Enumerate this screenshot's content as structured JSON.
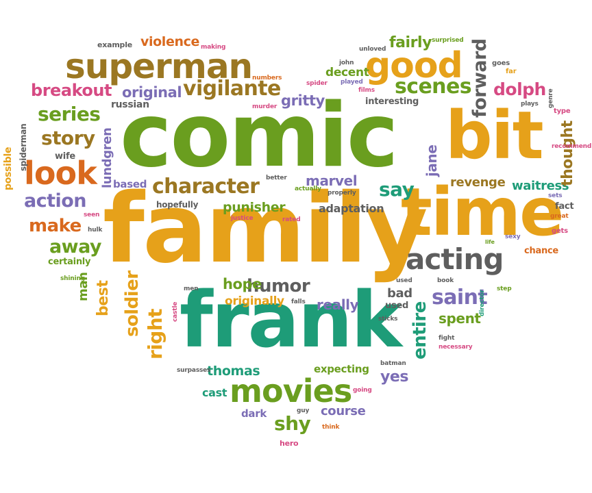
{
  "palette": {
    "green": "#6a9e1f",
    "gold": "#e6a11a",
    "teal": "#1e9c78",
    "gray": "#5e5e5e",
    "purple": "#7b6db5",
    "orange": "#d9691e",
    "brown": "#9b7722",
    "pink": "#d64a83",
    "olive": "#8a9a2a"
  },
  "words": [
    {
      "text": "comic",
      "color": "#6a9e1f"
    },
    {
      "text": "family",
      "color": "#e6a11a"
    },
    {
      "text": "frank",
      "color": "#1e9c78"
    },
    {
      "text": "time",
      "color": "#e6a11a"
    },
    {
      "text": "bit",
      "color": "#e6a11a"
    },
    {
      "text": "superman",
      "color": "#9b7722"
    },
    {
      "text": "good",
      "color": "#e6a11a"
    },
    {
      "text": "look",
      "color": "#d9691e"
    },
    {
      "text": "movies",
      "color": "#6a9e1f"
    },
    {
      "text": "acting",
      "color": "#5e5e5e"
    },
    {
      "text": "character",
      "color": "#9b7722"
    },
    {
      "text": "vigilante",
      "color": "#9b7722"
    },
    {
      "text": "scenes",
      "color": "#6a9e1f"
    },
    {
      "text": "breakout",
      "color": "#d64a83"
    },
    {
      "text": "story",
      "color": "#9b7722"
    },
    {
      "text": "series",
      "color": "#6a9e1f"
    },
    {
      "text": "action",
      "color": "#7b6db5"
    },
    {
      "text": "make",
      "color": "#d9691e"
    },
    {
      "text": "away",
      "color": "#6a9e1f"
    },
    {
      "text": "humor",
      "color": "#5e5e5e"
    },
    {
      "text": "saint",
      "color": "#7b6db5"
    },
    {
      "text": "original",
      "color": "#7b6db5"
    },
    {
      "text": "right",
      "color": "#e6a11a"
    },
    {
      "text": "soldier",
      "color": "#e6a11a"
    },
    {
      "text": "entire",
      "color": "#1e9c78"
    },
    {
      "text": "dolph",
      "color": "#d64a83"
    },
    {
      "text": "forward",
      "color": "#5e5e5e"
    },
    {
      "text": "jane",
      "color": "#7b6db5"
    },
    {
      "text": "say",
      "color": "#1e9c78"
    },
    {
      "text": "revenge",
      "color": "#9b7722"
    },
    {
      "text": "thought",
      "color": "#9b7722"
    },
    {
      "text": "violence",
      "color": "#d9691e"
    },
    {
      "text": "fairly",
      "color": "#6a9e1f"
    },
    {
      "text": "punisher",
      "color": "#6a9e1f"
    },
    {
      "text": "marvel",
      "color": "#7b6db5"
    },
    {
      "text": "gritty",
      "color": "#7b6db5"
    },
    {
      "text": "hope",
      "color": "#6a9e1f"
    },
    {
      "text": "really",
      "color": "#7b6db5"
    },
    {
      "text": "spent",
      "color": "#6a9e1f"
    },
    {
      "text": "yes",
      "color": "#7b6db5"
    },
    {
      "text": "shy",
      "color": "#6a9e1f"
    },
    {
      "text": "thomas",
      "color": "#1e9c78"
    },
    {
      "text": "best",
      "color": "#e6a11a"
    },
    {
      "text": "man",
      "color": "#6a9e1f"
    },
    {
      "text": "lundgren",
      "color": "#7b6db5"
    },
    {
      "text": "decent",
      "color": "#6a9e1f"
    },
    {
      "text": "waitress",
      "color": "#1e9c78"
    },
    {
      "text": "originally",
      "color": "#e6a11a"
    },
    {
      "text": "course",
      "color": "#7b6db5"
    },
    {
      "text": "expecting",
      "color": "#6a9e1f"
    },
    {
      "text": "adaptation",
      "color": "#5e5e5e"
    },
    {
      "text": "bad",
      "color": "#5e5e5e"
    },
    {
      "text": "possible",
      "color": "#e6a11a"
    },
    {
      "text": "spiderman",
      "color": "#5e5e5e"
    },
    {
      "text": "wife",
      "color": "#5e5e5e"
    },
    {
      "text": "based",
      "color": "#7b6db5"
    },
    {
      "text": "hopefully",
      "color": "#5e5e5e"
    },
    {
      "text": "russian",
      "color": "#5e5e5e"
    },
    {
      "text": "cast",
      "color": "#1e9c78"
    },
    {
      "text": "dark",
      "color": "#7b6db5"
    },
    {
      "text": "certainly",
      "color": "#6a9e1f"
    },
    {
      "text": "interesting",
      "color": "#5e5e5e"
    },
    {
      "text": "example",
      "color": "#5e5e5e"
    },
    {
      "text": "making",
      "color": "#d64a83"
    },
    {
      "text": "unloved",
      "color": "#5e5e5e"
    },
    {
      "text": "surprised",
      "color": "#6a9e1f"
    },
    {
      "text": "goes",
      "color": "#5e5e5e"
    },
    {
      "text": "far",
      "color": "#e6a11a"
    },
    {
      "text": "john",
      "color": "#5e5e5e"
    },
    {
      "text": "numbers",
      "color": "#d9691e"
    },
    {
      "text": "spider",
      "color": "#d64a83"
    },
    {
      "text": "played",
      "color": "#7b6db5"
    },
    {
      "text": "films",
      "color": "#d64a83"
    },
    {
      "text": "office",
      "color": "#5e5e5e"
    },
    {
      "text": "genre",
      "color": "#5e5e5e"
    },
    {
      "text": "plays",
      "color": "#5e5e5e"
    },
    {
      "text": "type",
      "color": "#d64a83"
    },
    {
      "text": "murder",
      "color": "#d64a83"
    },
    {
      "text": "recommend",
      "color": "#d64a83"
    },
    {
      "text": "sets",
      "color": "#7b6db5"
    },
    {
      "text": "fact",
      "color": "#5e5e5e"
    },
    {
      "text": "great",
      "color": "#d9691e"
    },
    {
      "text": "gets",
      "color": "#d64a83"
    },
    {
      "text": "life",
      "color": "#6a9e1f"
    },
    {
      "text": "sexy",
      "color": "#7b6db5"
    },
    {
      "text": "chance",
      "color": "#d9691e"
    },
    {
      "text": "better",
      "color": "#5e5e5e"
    },
    {
      "text": "actually",
      "color": "#6a9e1f"
    },
    {
      "text": "properly",
      "color": "#5e5e5e"
    },
    {
      "text": "justice",
      "color": "#d64a83"
    },
    {
      "text": "rated",
      "color": "#d64a83"
    },
    {
      "text": "seen",
      "color": "#d64a83"
    },
    {
      "text": "hulk",
      "color": "#5e5e5e"
    },
    {
      "text": "shining",
      "color": "#6a9e1f"
    },
    {
      "text": "men",
      "color": "#5e5e5e"
    },
    {
      "text": "castle",
      "color": "#d64a83"
    },
    {
      "text": "falls",
      "color": "#5e5e5e"
    },
    {
      "text": "used",
      "color": "#5e5e5e"
    },
    {
      "text": "performance",
      "color": "#d64a83"
    },
    {
      "text": "book",
      "color": "#5e5e5e"
    },
    {
      "text": "step",
      "color": "#6a9e1f"
    },
    {
      "text": "director",
      "color": "#1e9c78"
    },
    {
      "text": "sticks",
      "color": "#5e5e5e"
    },
    {
      "text": "fight",
      "color": "#5e5e5e"
    },
    {
      "text": "necessary",
      "color": "#d64a83"
    },
    {
      "text": "batman",
      "color": "#5e5e5e"
    },
    {
      "text": "surpasses",
      "color": "#5e5e5e"
    },
    {
      "text": "going",
      "color": "#d64a83"
    },
    {
      "text": "guy",
      "color": "#5e5e5e"
    },
    {
      "text": "think",
      "color": "#d9691e"
    },
    {
      "text": "hero",
      "color": "#d64a83"
    }
  ]
}
